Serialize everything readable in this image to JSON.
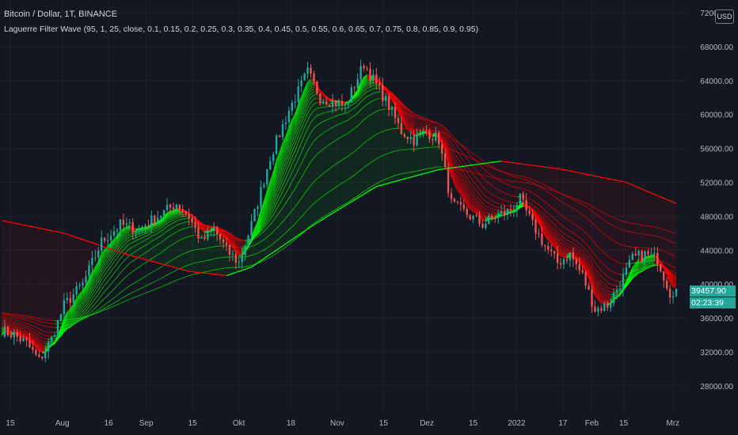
{
  "header": {
    "symbol_title": "Bitcoin / Dollar, 1T, BINANCE",
    "indicator_label": "Laguerre Filter Wave (95, 1, 25, close, 0.1, 0.15, 0.2, 0.25, 0.3, 0.35, 0.4, 0.45, 0.5, 0.55, 0.6, 0.65, 0.7, 0.75, 0.8, 0.85, 0.9, 0.95)",
    "currency": "USD"
  },
  "price_tag": {
    "price": "39457.90",
    "countdown": "02:23:39",
    "color": "#26a69a"
  },
  "colors": {
    "background": "#131722",
    "up_candle": "#26a69a",
    "down_candle": "#ef5350",
    "wave_up": "#00ff00",
    "wave_down": "#ff0000",
    "axis_text": "#b2b5be"
  },
  "chart_data": {
    "type": "candlestick",
    "title": "Bitcoin / Dollar, 1T, BINANCE",
    "y_axis_ticks": [
      "28000.00",
      "32000.00",
      "36000.00",
      "40000.00",
      "44000.00",
      "48000.00",
      "52000.00",
      "56000.00",
      "60000.00",
      "64000.00",
      "68000.00",
      "72000.00"
    ],
    "x_axis_ticks": [
      "15",
      "Aug",
      "16",
      "Sep",
      "15",
      "Okt",
      "18",
      "Nov",
      "15",
      "Dez",
      "15",
      "2022",
      "17",
      "Feb",
      "15",
      "Mrz"
    ],
    "ylim": [
      25000,
      73500
    ],
    "price_points": [
      [
        0,
        34500
      ],
      [
        4,
        34000
      ],
      [
        8,
        33000
      ],
      [
        12,
        31000
      ],
      [
        16,
        33500
      ],
      [
        20,
        37500
      ],
      [
        26,
        40000
      ],
      [
        32,
        45000
      ],
      [
        38,
        47000
      ],
      [
        44,
        46500
      ],
      [
        50,
        48000
      ],
      [
        56,
        49500
      ],
      [
        60,
        48000
      ],
      [
        64,
        45000
      ],
      [
        68,
        46500
      ],
      [
        72,
        44000
      ],
      [
        76,
        42500
      ],
      [
        80,
        47000
      ],
      [
        86,
        55000
      ],
      [
        92,
        60500
      ],
      [
        98,
        65000
      ],
      [
        102,
        62000
      ],
      [
        106,
        61500
      ],
      [
        110,
        61000
      ],
      [
        116,
        66000
      ],
      [
        120,
        63500
      ],
      [
        124,
        61000
      ],
      [
        128,
        58000
      ],
      [
        132,
        57000
      ],
      [
        136,
        58000
      ],
      [
        140,
        57000
      ],
      [
        144,
        49500
      ],
      [
        150,
        48000
      ],
      [
        154,
        47000
      ],
      [
        158,
        48000
      ],
      [
        162,
        48500
      ],
      [
        166,
        50000
      ],
      [
        170,
        47000
      ],
      [
        174,
        44500
      ],
      [
        178,
        42500
      ],
      [
        182,
        43500
      ],
      [
        186,
        41000
      ],
      [
        190,
        37000
      ],
      [
        194,
        37500
      ],
      [
        198,
        40000
      ],
      [
        202,
        43000
      ],
      [
        206,
        43500
      ],
      [
        210,
        43000
      ],
      [
        214,
        39000
      ],
      [
        216,
        39500
      ]
    ],
    "slow_wave": [
      [
        0,
        47500
      ],
      [
        20,
        46000
      ],
      [
        40,
        43500
      ],
      [
        60,
        41500
      ],
      [
        72,
        41000
      ],
      [
        80,
        42000
      ],
      [
        100,
        47000
      ],
      [
        120,
        51500
      ],
      [
        140,
        53500
      ],
      [
        160,
        54500
      ],
      [
        180,
        53500
      ],
      [
        200,
        52000
      ],
      [
        216,
        49500
      ]
    ],
    "last_close": 39457.9
  }
}
